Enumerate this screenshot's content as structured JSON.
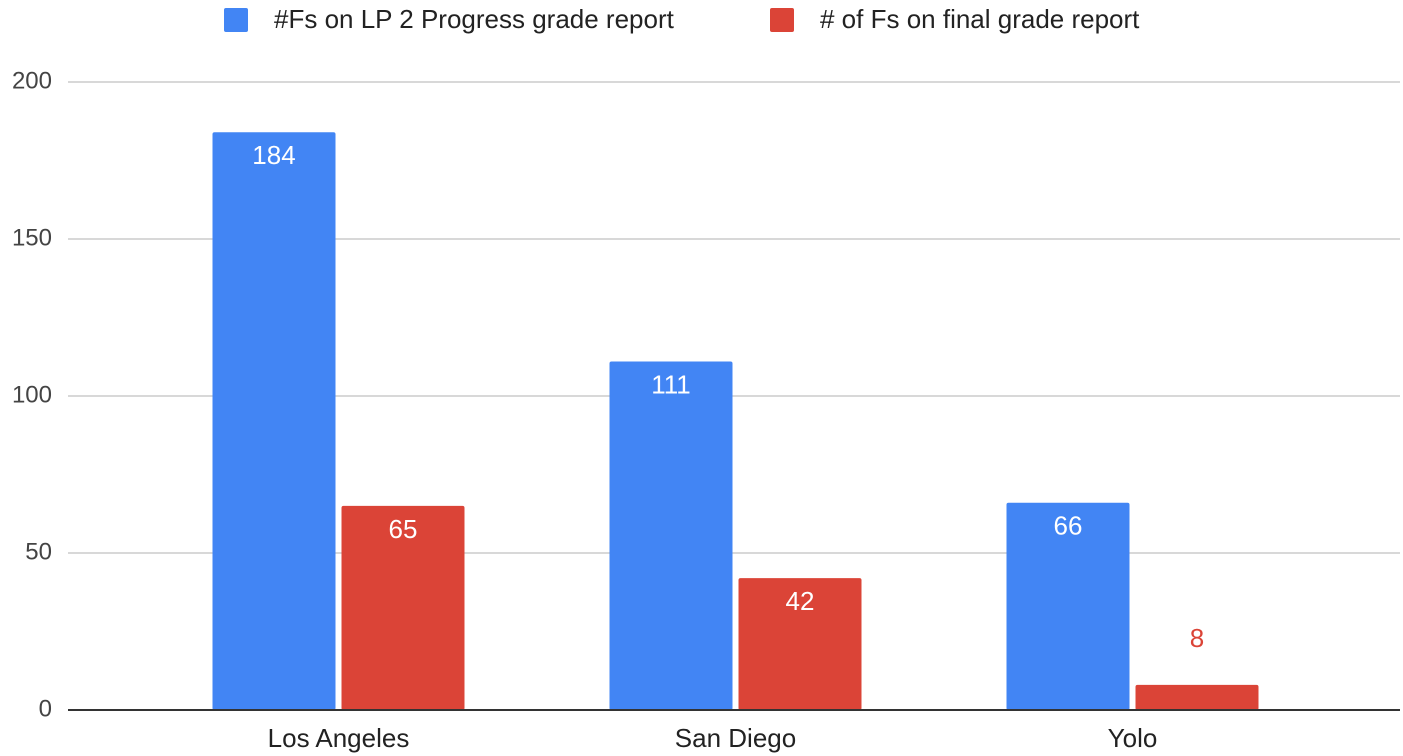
{
  "chart_data": {
    "type": "bar",
    "categories": [
      "Los Angeles",
      "San Diego",
      "Yolo"
    ],
    "series": [
      {
        "name": "#Fs on LP 2 Progress grade report",
        "color": "#4285f4",
        "values": [
          184,
          111,
          66
        ]
      },
      {
        "name": "# of Fs on final grade report",
        "color": "#db4437",
        "values": [
          65,
          42,
          8
        ]
      }
    ],
    "ylim": [
      0,
      200
    ],
    "yticks": [
      0,
      50,
      100,
      150,
      200
    ],
    "grid": true,
    "legend": "top",
    "data_labels": true
  }
}
